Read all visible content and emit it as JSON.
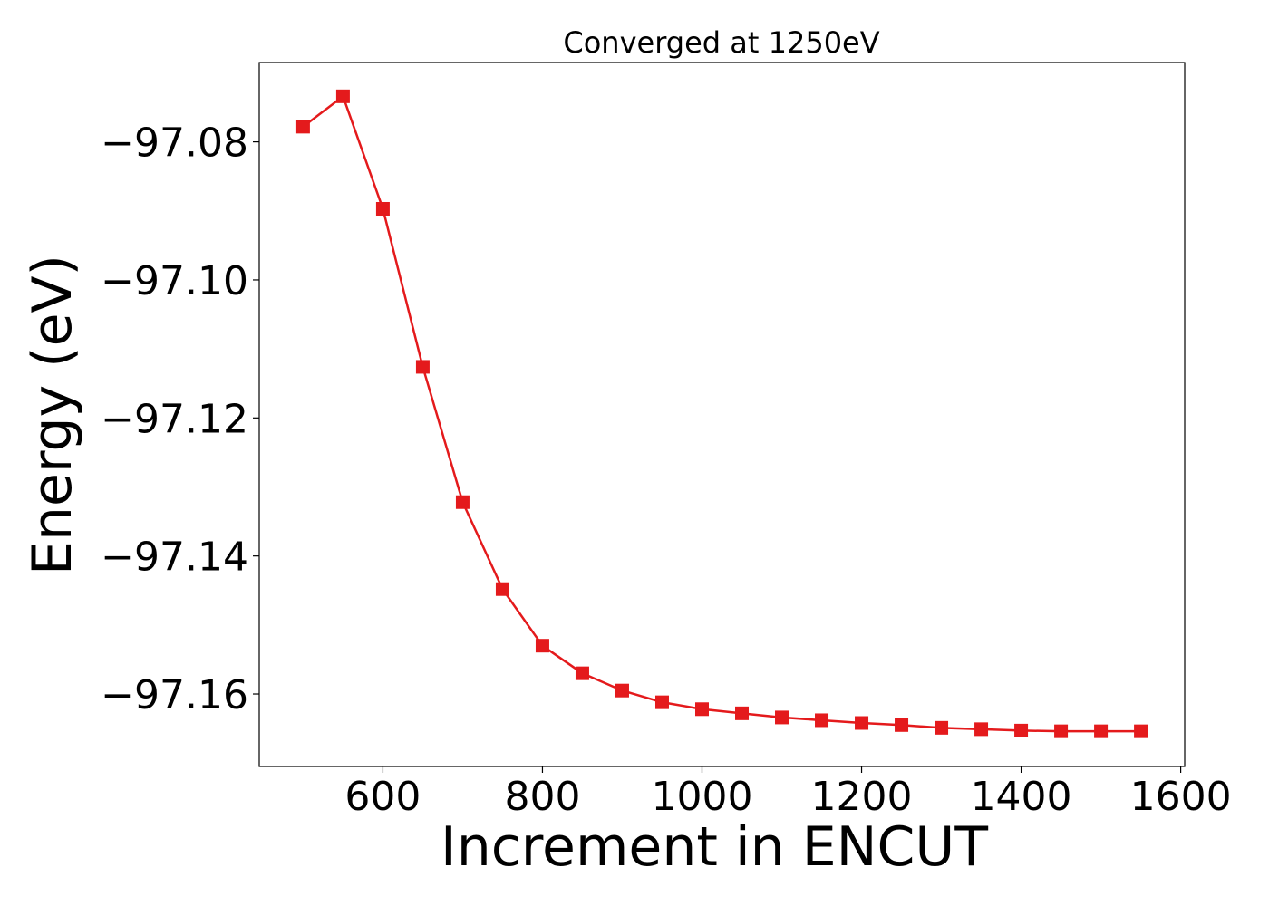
{
  "chart_data": {
    "type": "line",
    "title": "Converged at 1250eV",
    "xlabel": "Increment in ENCUT",
    "ylabel": "Energy (eV)",
    "xlim": [
      445,
      1605
    ],
    "ylim": [
      -97.1705,
      -97.0685
    ],
    "xticks": [
      600,
      800,
      1000,
      1200,
      1400,
      1600
    ],
    "xtick_labels": [
      "600",
      "800",
      "1000",
      "1200",
      "1400",
      "1600"
    ],
    "yticks": [
      -97.08,
      -97.1,
      -97.12,
      -97.14,
      -97.16
    ],
    "ytick_labels": [
      "−97.08",
      "−97.10",
      "−97.12",
      "−97.14",
      "−97.16"
    ],
    "grid": false,
    "series": [
      {
        "marker": "square",
        "color": "#e41a1c",
        "x": [
          500,
          550,
          600,
          650,
          700,
          750,
          800,
          850,
          900,
          950,
          1000,
          1050,
          1100,
          1150,
          1200,
          1250,
          1300,
          1350,
          1400,
          1450,
          1500,
          1550
        ],
        "y": [
          -97.0778,
          -97.0734,
          -97.0897,
          -97.1126,
          -97.1322,
          -97.1448,
          -97.153,
          -97.157,
          -97.1595,
          -97.1612,
          -97.1622,
          -97.1628,
          -97.1634,
          -97.1638,
          -97.1642,
          -97.1645,
          -97.1649,
          -97.1651,
          -97.1653,
          -97.1654,
          -97.1654,
          -97.1654
        ]
      }
    ]
  }
}
